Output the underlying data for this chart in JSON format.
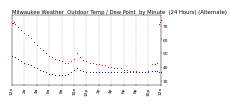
{
  "title": "Milwaukee Weather  Outdoor Temp / Dew Point  by Minute  (24 Hours) (Alternate)",
  "bg_color": "#ffffff",
  "grid_color": "#aaaaaa",
  "temp_color": "#ff0000",
  "dew_color": "#0000ff",
  "ylim": [
    27,
    78
  ],
  "xlim": [
    0,
    1440
  ],
  "ytick_vals": [
    30,
    40,
    50,
    60,
    70
  ],
  "ytick_labels": [
    "30",
    "40",
    "50",
    "60",
    "70"
  ],
  "xtick_positions": [
    0,
    120,
    240,
    360,
    480,
    600,
    720,
    840,
    960,
    1080,
    1200,
    1320,
    1440
  ],
  "xtick_labels": [
    "12a",
    "2a",
    "4a",
    "6a",
    "8a",
    "10a",
    "12p",
    "2p",
    "4p",
    "6p",
    "8p",
    "10p",
    "12a"
  ],
  "title_fontsize": 3.8,
  "tick_fontsize": 3.2,
  "dot_size": 0.5,
  "temp_data": [
    [
      0,
      72
    ],
    [
      10,
      72
    ],
    [
      20,
      73
    ],
    [
      30,
      71
    ],
    [
      60,
      69
    ],
    [
      90,
      67
    ],
    [
      120,
      65
    ],
    [
      150,
      63
    ],
    [
      180,
      61
    ],
    [
      210,
      58
    ],
    [
      240,
      56
    ],
    [
      270,
      54
    ],
    [
      300,
      52
    ],
    [
      330,
      50
    ],
    [
      360,
      48
    ],
    [
      390,
      47
    ],
    [
      420,
      46
    ],
    [
      450,
      45
    ],
    [
      480,
      44
    ],
    [
      510,
      43
    ],
    [
      540,
      43
    ],
    [
      570,
      44
    ],
    [
      600,
      46
    ],
    [
      630,
      50
    ],
    [
      660,
      47
    ],
    [
      690,
      45
    ],
    [
      720,
      44
    ],
    [
      750,
      43
    ],
    [
      780,
      43
    ],
    [
      810,
      42
    ],
    [
      840,
      42
    ],
    [
      870,
      41
    ],
    [
      900,
      41
    ],
    [
      930,
      40
    ],
    [
      960,
      40
    ],
    [
      990,
      39
    ],
    [
      1020,
      39
    ],
    [
      1050,
      39
    ],
    [
      1080,
      38
    ],
    [
      1110,
      38
    ],
    [
      1140,
      37
    ],
    [
      1170,
      37
    ],
    [
      1200,
      37
    ],
    [
      1230,
      36
    ],
    [
      1260,
      36
    ],
    [
      1290,
      36
    ],
    [
      1320,
      37
    ],
    [
      1350,
      42
    ],
    [
      1380,
      42
    ],
    [
      1400,
      43
    ],
    [
      1420,
      71
    ],
    [
      1430,
      73
    ],
    [
      1440,
      74
    ]
  ],
  "dew_data": [
    [
      0,
      48
    ],
    [
      30,
      47
    ],
    [
      60,
      46
    ],
    [
      90,
      44
    ],
    [
      120,
      43
    ],
    [
      150,
      42
    ],
    [
      180,
      41
    ],
    [
      210,
      40
    ],
    [
      240,
      39
    ],
    [
      270,
      38
    ],
    [
      300,
      37
    ],
    [
      330,
      36
    ],
    [
      360,
      35
    ],
    [
      390,
      35
    ],
    [
      420,
      34
    ],
    [
      450,
      34
    ],
    [
      480,
      34
    ],
    [
      510,
      34
    ],
    [
      540,
      35
    ],
    [
      570,
      36
    ],
    [
      600,
      38
    ],
    [
      630,
      39
    ],
    [
      660,
      38
    ],
    [
      690,
      37
    ],
    [
      720,
      36
    ],
    [
      750,
      36
    ],
    [
      780,
      36
    ],
    [
      810,
      36
    ],
    [
      840,
      36
    ],
    [
      870,
      36
    ],
    [
      900,
      36
    ],
    [
      930,
      36
    ],
    [
      960,
      36
    ],
    [
      990,
      36
    ],
    [
      1020,
      36
    ],
    [
      1050,
      36
    ],
    [
      1080,
      36
    ],
    [
      1110,
      36
    ],
    [
      1140,
      36
    ],
    [
      1170,
      36
    ],
    [
      1200,
      36
    ],
    [
      1230,
      36
    ],
    [
      1260,
      36
    ],
    [
      1290,
      36
    ],
    [
      1320,
      36
    ],
    [
      1350,
      37
    ],
    [
      1380,
      37
    ],
    [
      1400,
      37
    ],
    [
      1420,
      36
    ],
    [
      1440,
      36
    ]
  ]
}
